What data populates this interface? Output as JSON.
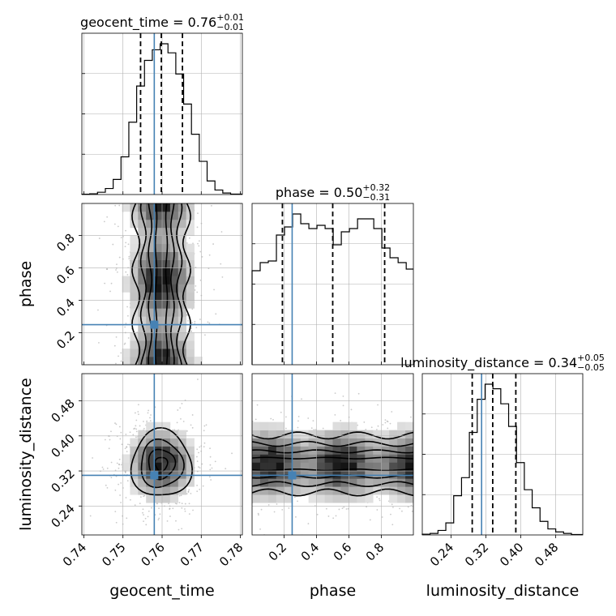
{
  "chart_data": {
    "type": "corner",
    "parameters": [
      "geocent_time",
      "phase",
      "luminosity_distance"
    ],
    "truths": {
      "geocent_time": 0.758,
      "phase": 0.25,
      "luminosity_distance": 0.31
    },
    "quantiles_label": [
      "16%",
      "50%",
      "84%"
    ],
    "titles": [
      {
        "param": "geocent_time",
        "text": "geocent_time = 0.76",
        "plus": "+0.01",
        "minus": "−0.01"
      },
      {
        "param": "phase",
        "text": "phase = 0.50",
        "plus": "+0.32",
        "minus": "−0.31"
      },
      {
        "param": "luminosity_distance",
        "text": "luminosity_distance = 0.34",
        "plus": "+0.05",
        "minus": "−0.05"
      }
    ],
    "ranges": {
      "geocent_time": [
        0.7395,
        0.7805
      ],
      "phase": [
        0.003,
        0.997
      ],
      "luminosity_distance": [
        0.174,
        0.542
      ]
    },
    "ticks": {
      "geocent_time": [
        "0.74",
        "0.75",
        "0.76",
        "0.77",
        "0.78"
      ],
      "phase": [
        "0.2",
        "0.4",
        "0.6",
        "0.8"
      ],
      "luminosity_distance": [
        "0.24",
        "0.32",
        "0.40",
        "0.48"
      ]
    },
    "marginals": {
      "geocent_time": {
        "bin_edges": [
          0.7395,
          0.7415,
          0.7435,
          0.7455,
          0.7475,
          0.7495,
          0.7515,
          0.7535,
          0.7555,
          0.7575,
          0.7595,
          0.7615,
          0.7635,
          0.7655,
          0.7675,
          0.7695,
          0.7715,
          0.7735,
          0.7755,
          0.7775,
          0.7805
        ],
        "counts": [
          0.2,
          0.5,
          1.5,
          4,
          10,
          25,
          48,
          72,
          89,
          96,
          100,
          94,
          80,
          60,
          40,
          22,
          9,
          3,
          1,
          0.3
        ],
        "quantiles": [
          0.7545,
          0.7598,
          0.7652
        ]
      },
      "phase": {
        "bin_edges": [
          0.003,
          0.053,
          0.103,
          0.153,
          0.203,
          0.253,
          0.303,
          0.353,
          0.403,
          0.453,
          0.503,
          0.553,
          0.603,
          0.653,
          0.703,
          0.753,
          0.803,
          0.853,
          0.903,
          0.953,
          0.997
        ],
        "counts": [
          58,
          63,
          64,
          80,
          85,
          93,
          87,
          84,
          86,
          84,
          74,
          82,
          84,
          90,
          90,
          84,
          72,
          66,
          63,
          59
        ],
        "quantiles": [
          0.19,
          0.5,
          0.82
        ]
      },
      "luminosity_distance": {
        "bin_edges": [
          0.174,
          0.192,
          0.21,
          0.228,
          0.246,
          0.264,
          0.282,
          0.3,
          0.318,
          0.336,
          0.354,
          0.372,
          0.39,
          0.408,
          0.426,
          0.444,
          0.462,
          0.48,
          0.498,
          0.516,
          0.542
        ],
        "counts": [
          0.5,
          1,
          3,
          8,
          26,
          38,
          68,
          90,
          100,
          97,
          87,
          72,
          48,
          30,
          18,
          9,
          4,
          2,
          1,
          0.3
        ],
        "quantiles": [
          0.2885,
          0.3355,
          0.3885
        ]
      }
    },
    "axis_labels": {
      "x": [
        "geocent_time",
        "phase",
        "luminosity_distance"
      ],
      "y": [
        "phase",
        "luminosity_distance"
      ]
    }
  }
}
